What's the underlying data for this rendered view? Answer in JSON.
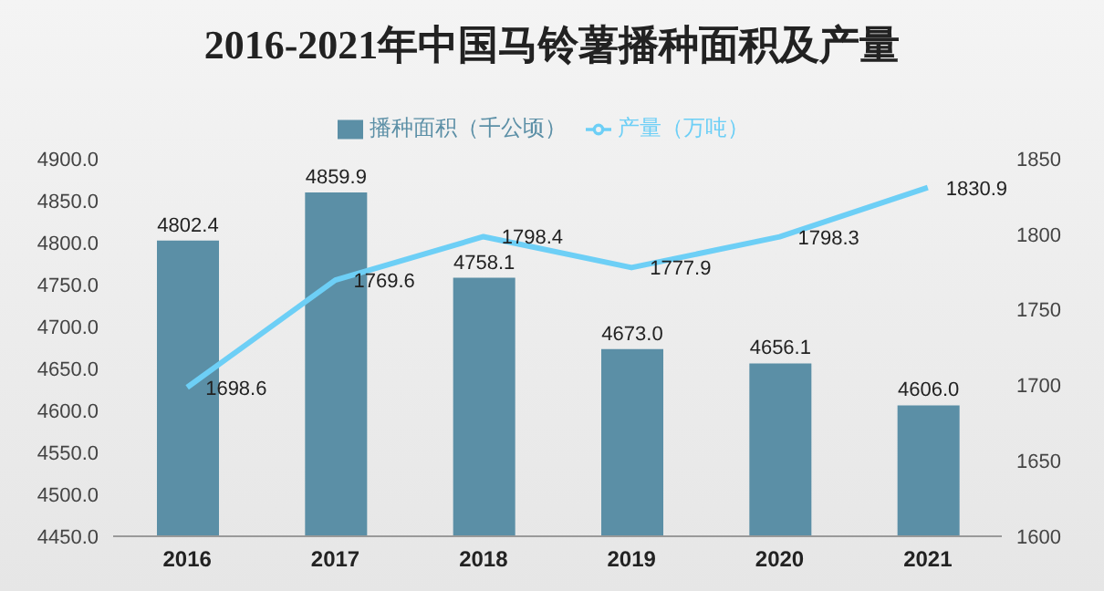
{
  "chart_data": {
    "type": "bar",
    "title": "2016-2021年中国马铃薯播种面积及产量",
    "categories": [
      "2016",
      "2017",
      "2018",
      "2019",
      "2020",
      "2021"
    ],
    "series": [
      {
        "name": "播种面积（千公顷）",
        "color": "#5b8fa6",
        "values": [
          4802.4,
          4859.9,
          4758.1,
          4673.0,
          4656.1,
          4606.0
        ],
        "value_labels": [
          "4802.4",
          "4859.9",
          "4758.1",
          "4673.0",
          "4656.1",
          "4606.0"
        ]
      },
      {
        "name": "产量（万吨）",
        "type": "line",
        "axis": "y2",
        "color": "#6dcff6",
        "values": [
          1698.6,
          1769.6,
          1798.4,
          1777.9,
          1798.3,
          1830.9
        ],
        "value_labels": [
          "1698.6",
          "1769.6",
          "1798.4",
          "1777.9",
          "1798.3",
          "1830.9"
        ]
      }
    ],
    "ylim": [
      4450,
      4900
    ],
    "yticks": [
      {
        "value": 4450,
        "label": "4450.0"
      },
      {
        "value": 4500,
        "label": "4500.0"
      },
      {
        "value": 4550,
        "label": "4550.0"
      },
      {
        "value": 4600,
        "label": "4600.0"
      },
      {
        "value": 4650,
        "label": "4650.0"
      },
      {
        "value": 4700,
        "label": "4700.0"
      },
      {
        "value": 4750,
        "label": "4750.0"
      },
      {
        "value": 4800,
        "label": "4800.0"
      },
      {
        "value": 4850,
        "label": "4850.0"
      },
      {
        "value": 4900,
        "label": "4900.0"
      }
    ],
    "y2lim": [
      1600,
      1850
    ],
    "y2ticks": [
      1600,
      1650,
      1700,
      1750,
      1800,
      1850
    ],
    "legend": "top",
    "marker": "none"
  }
}
